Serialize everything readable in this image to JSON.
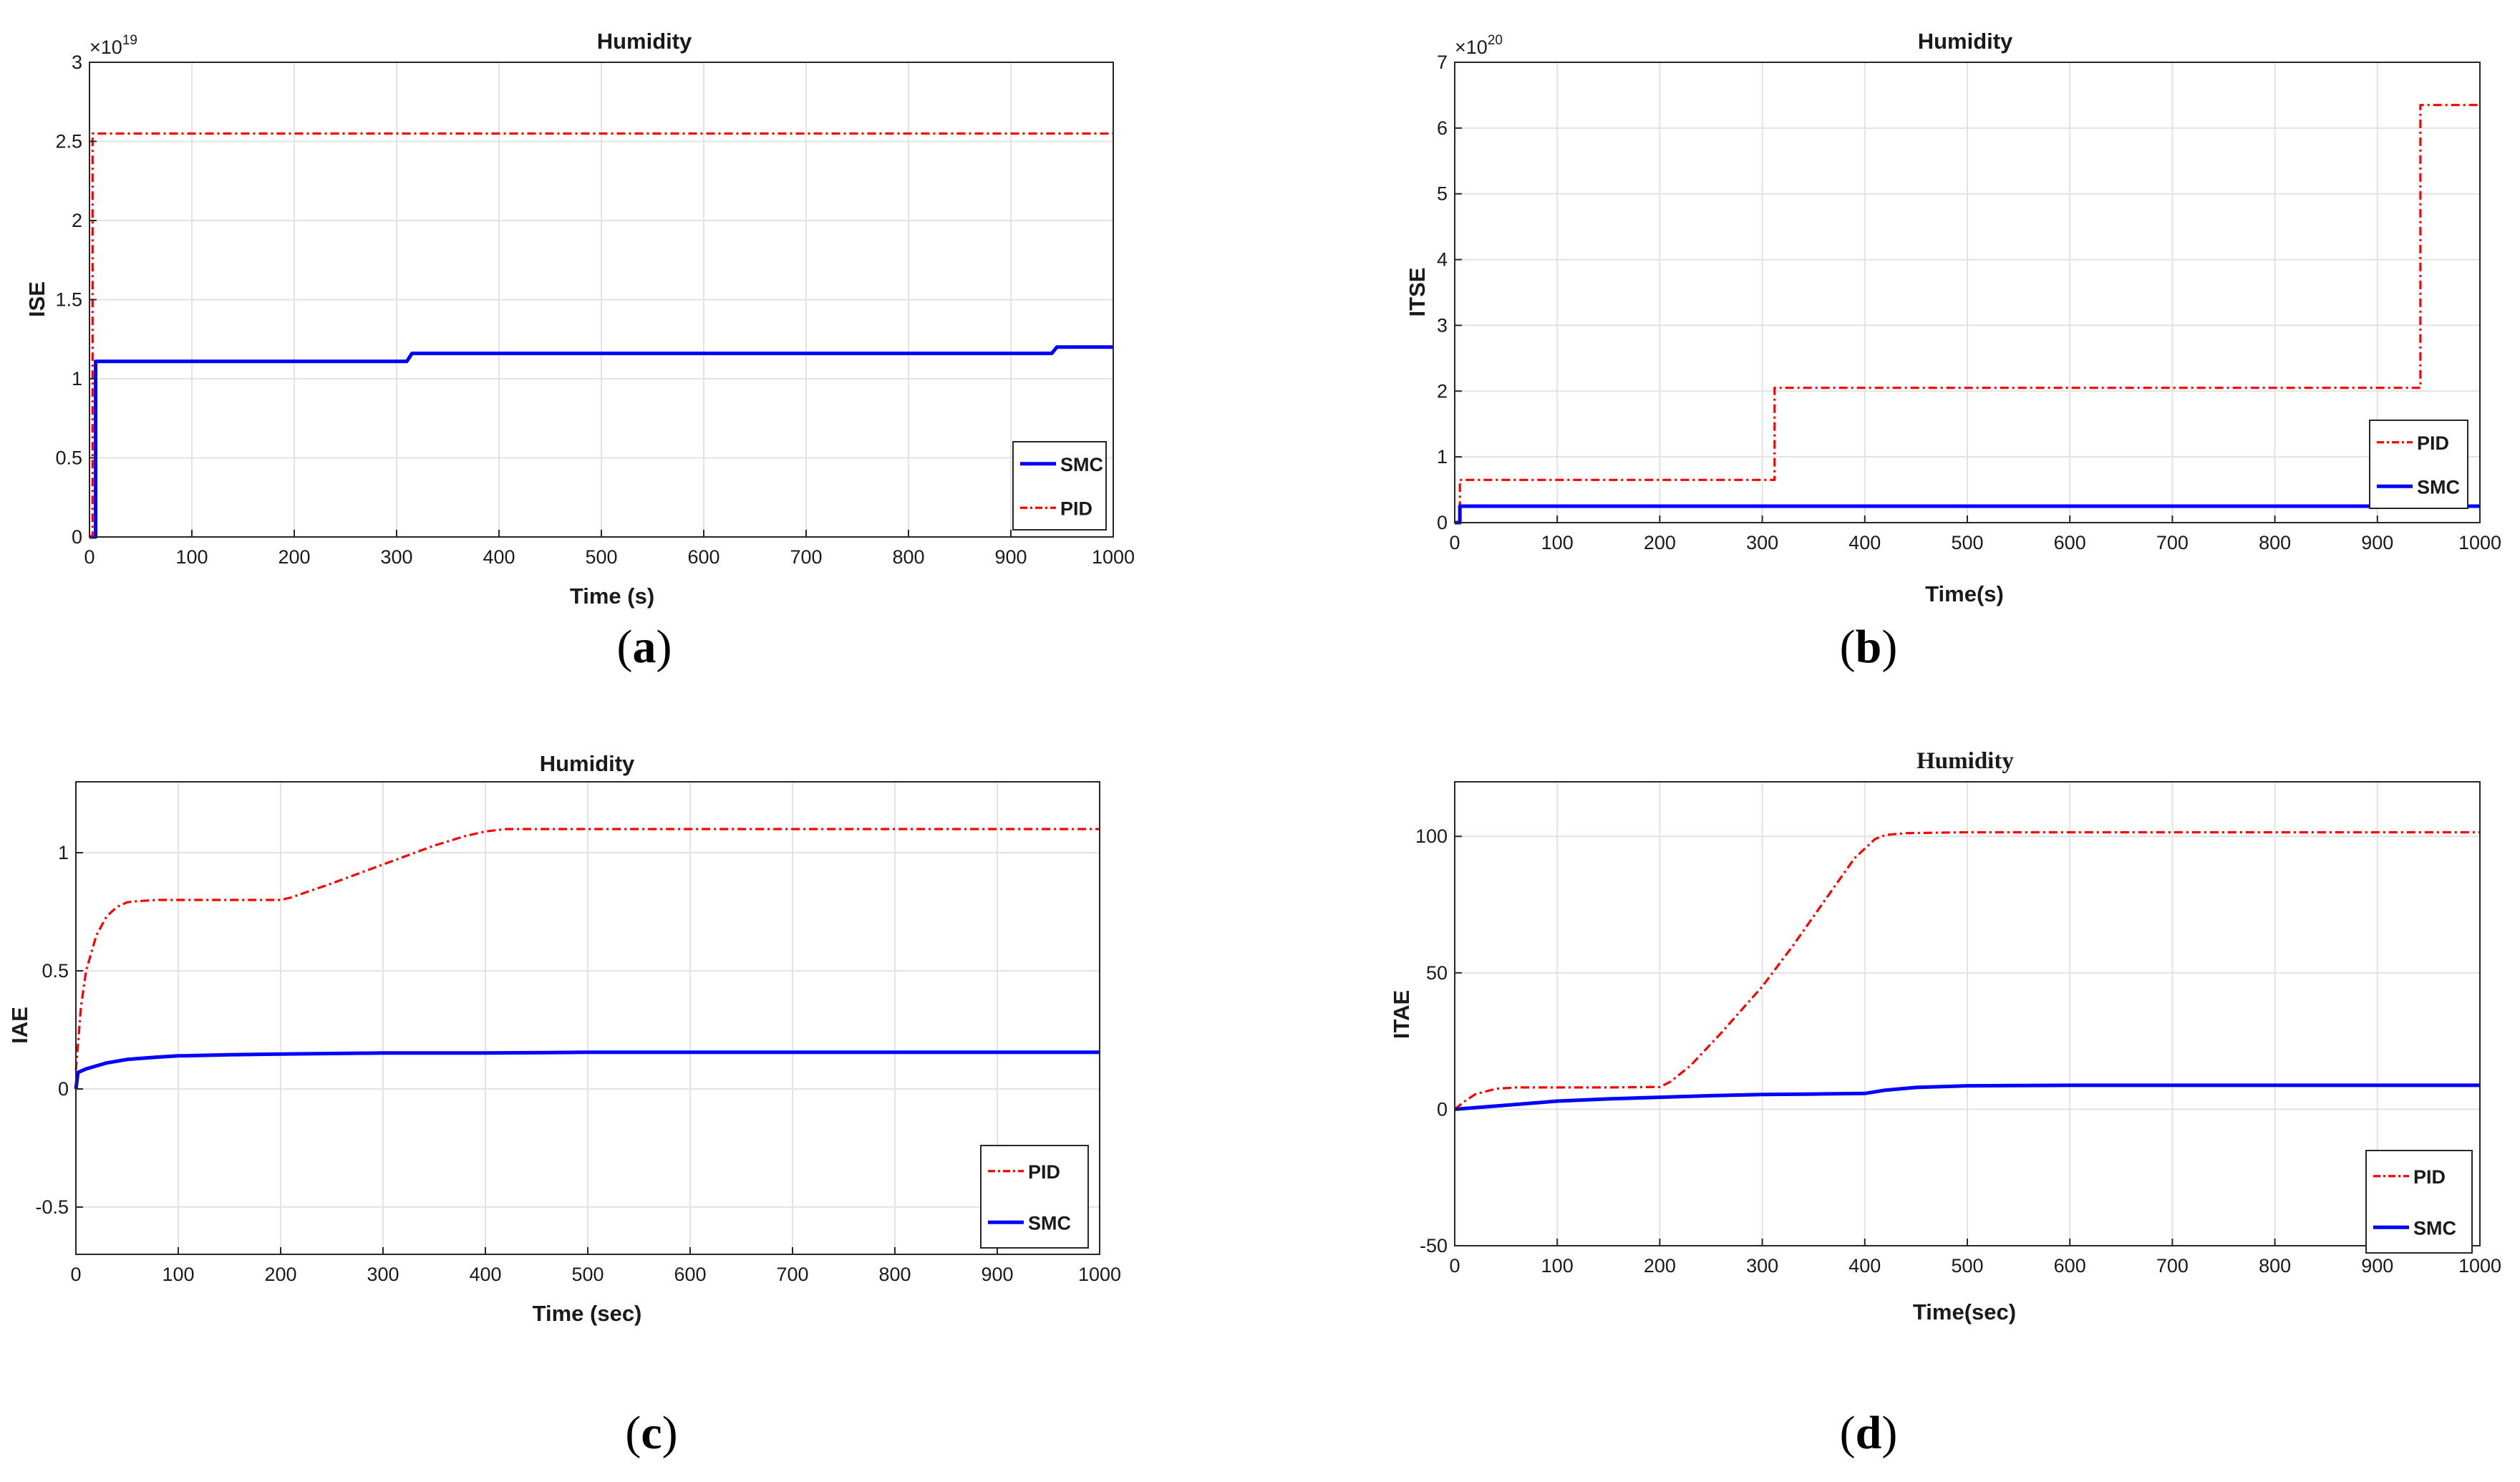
{
  "chart_data": [
    {
      "id": "a",
      "type": "line",
      "panel_label": "a",
      "title": "Humidity",
      "xlabel": "Time (s)",
      "ylabel": "ISE",
      "exponent": "19",
      "xlim": [
        0,
        1000
      ],
      "ylim": [
        0,
        3
      ],
      "xticks": [
        0,
        100,
        200,
        300,
        400,
        500,
        600,
        700,
        800,
        900,
        1000
      ],
      "yticks": [
        0,
        0.5,
        1,
        1.5,
        2,
        2.5,
        3
      ],
      "ytick_labels": [
        "0",
        "0.5",
        "1",
        "1.5",
        "2",
        "2.5",
        "3"
      ],
      "grid": true,
      "legend_position": "bottom-right",
      "legend_order": [
        "SMC",
        "PID"
      ],
      "series": [
        {
          "name": "SMC",
          "style": "solid",
          "color": "#0000ff",
          "x": [
            0,
            6,
            6,
            10,
            310,
            315,
            940,
            945,
            1000
          ],
          "y": [
            0,
            0,
            1.11,
            1.11,
            1.11,
            1.16,
            1.16,
            1.2,
            1.2
          ]
        },
        {
          "name": "PID",
          "style": "dashdot",
          "color": "#ff0000",
          "x": [
            0,
            3,
            3,
            1000
          ],
          "y": [
            0,
            0,
            2.55,
            2.55
          ]
        }
      ]
    },
    {
      "id": "b",
      "type": "line",
      "panel_label": "b",
      "title": "Humidity",
      "xlabel": "Time(s)",
      "ylabel": "ITSE",
      "exponent": "20",
      "xlim": [
        0,
        1000
      ],
      "ylim": [
        0,
        7
      ],
      "xticks": [
        0,
        100,
        200,
        300,
        400,
        500,
        600,
        700,
        800,
        900,
        1000
      ],
      "yticks": [
        0,
        1,
        2,
        3,
        4,
        5,
        6,
        7
      ],
      "ytick_labels": [
        "0",
        "1",
        "2",
        "3",
        "4",
        "5",
        "6",
        "7"
      ],
      "grid": true,
      "legend_position": "bottom-right",
      "legend_order": [
        "PID",
        "SMC"
      ],
      "series": [
        {
          "name": "PID",
          "style": "dashdot",
          "color": "#ff0000",
          "x": [
            0,
            5,
            5,
            312,
            312,
            942,
            942,
            1000
          ],
          "y": [
            0,
            0,
            0.65,
            0.65,
            2.05,
            2.05,
            6.35,
            6.35
          ]
        },
        {
          "name": "SMC",
          "style": "solid",
          "color": "#0000ff",
          "x": [
            0,
            5,
            5,
            1000
          ],
          "y": [
            0,
            0,
            0.25,
            0.25
          ]
        }
      ]
    },
    {
      "id": "c",
      "type": "line",
      "panel_label": "c",
      "title": "Humidity",
      "xlabel": "Time (sec)",
      "ylabel": "IAE",
      "exponent": "",
      "xlim": [
        0,
        1000
      ],
      "ylim": [
        -0.7,
        1.3
      ],
      "xticks": [
        0,
        100,
        200,
        300,
        400,
        500,
        600,
        700,
        800,
        900,
        1000
      ],
      "yticks": [
        -0.5,
        0,
        0.5,
        1
      ],
      "ytick_labels": [
        "-0.5",
        "0",
        "0.5",
        "1"
      ],
      "grid": true,
      "legend_position": "bottom-right",
      "legend_order": [
        "PID",
        "SMC"
      ],
      "series": [
        {
          "name": "PID",
          "style": "dashdot",
          "color": "#ff0000",
          "x": [
            0,
            5,
            10,
            20,
            30,
            40,
            50,
            60,
            80,
            100,
            150,
            200,
            210,
            250,
            300,
            350,
            380,
            400,
            420,
            450,
            500,
            600,
            700,
            800,
            900,
            1000
          ],
          "y": [
            0.08,
            0.35,
            0.5,
            0.65,
            0.73,
            0.77,
            0.79,
            0.795,
            0.8,
            0.8,
            0.8,
            0.8,
            0.81,
            0.87,
            0.95,
            1.03,
            1.07,
            1.09,
            1.1,
            1.1,
            1.1,
            1.1,
            1.1,
            1.1,
            1.1,
            1.1
          ]
        },
        {
          "name": "SMC",
          "style": "solid",
          "color": "#0000ff",
          "x": [
            0,
            2,
            10,
            30,
            50,
            80,
            100,
            150,
            200,
            300,
            400,
            500,
            600,
            700,
            800,
            900,
            1000
          ],
          "y": [
            0.0,
            0.07,
            0.085,
            0.11,
            0.125,
            0.135,
            0.14,
            0.145,
            0.148,
            0.152,
            0.152,
            0.155,
            0.155,
            0.155,
            0.155,
            0.155,
            0.155
          ]
        }
      ]
    },
    {
      "id": "d",
      "type": "line",
      "panel_label": "d",
      "title": "Humidity",
      "xlabel": "Time(sec)",
      "ylabel": "ITAE",
      "exponent": "",
      "xlim": [
        0,
        1000
      ],
      "ylim": [
        -50,
        120
      ],
      "xticks": [
        0,
        100,
        200,
        300,
        400,
        500,
        600,
        700,
        800,
        900,
        1000
      ],
      "yticks": [
        -50,
        0,
        50,
        100
      ],
      "ytick_labels": [
        "-50",
        "0",
        "50",
        "100"
      ],
      "grid": true,
      "legend_position": "bottom-right",
      "legend_order": [
        "PID",
        "SMC"
      ],
      "series": [
        {
          "name": "PID",
          "style": "dashdot",
          "color": "#ff0000",
          "x": [
            0,
            10,
            20,
            40,
            60,
            100,
            150,
            200,
            210,
            230,
            260,
            300,
            330,
            360,
            390,
            410,
            420,
            440,
            500,
            600,
            700,
            800,
            900,
            1000
          ],
          "y": [
            0,
            3,
            5.5,
            7.5,
            8,
            8,
            8,
            8.2,
            10,
            16,
            28,
            45,
            60,
            76,
            92,
            99,
            100.5,
            101.2,
            101.5,
            101.5,
            101.5,
            101.5,
            101.5,
            101.5
          ]
        },
        {
          "name": "SMC",
          "style": "solid",
          "color": "#0000ff",
          "x": [
            0,
            50,
            100,
            150,
            200,
            250,
            300,
            350,
            400,
            420,
            450,
            500,
            600,
            700,
            800,
            900,
            1000
          ],
          "y": [
            0,
            1.5,
            3,
            3.8,
            4.4,
            5,
            5.4,
            5.6,
            5.8,
            7,
            8,
            8.6,
            8.8,
            8.8,
            8.8,
            8.8,
            8.8
          ]
        }
      ]
    }
  ]
}
